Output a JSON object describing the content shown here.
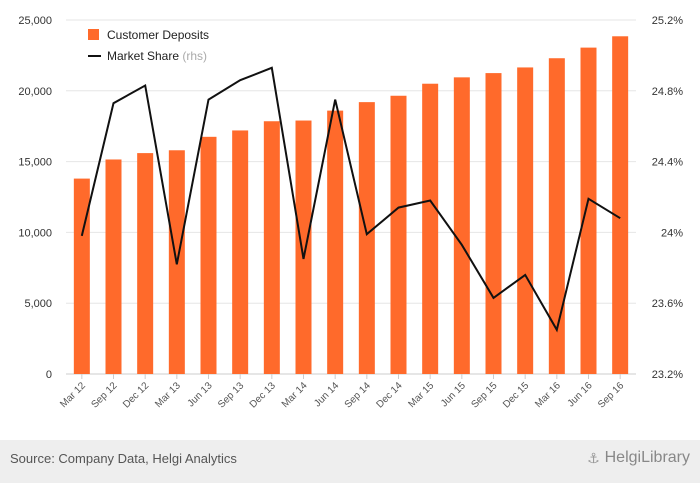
{
  "chart_data": {
    "type": "bar",
    "categories": [
      "Mar 12",
      "Sep 12",
      "Dec 12",
      "Mar 13",
      "Jun 13",
      "Sep 13",
      "Dec 13",
      "Mar 14",
      "Jun 14",
      "Sep 14",
      "Dec 14",
      "Mar 15",
      "Jun 15",
      "Sep 15",
      "Dec 15",
      "Mar 16",
      "Jun 16",
      "Sep 16"
    ],
    "series": [
      {
        "name": "Customer Deposits",
        "type": "bar",
        "axis": "left",
        "color": "#ff6a2b",
        "values": [
          13800,
          15150,
          15600,
          15800,
          16750,
          17200,
          17850,
          17900,
          18600,
          19200,
          19650,
          20500,
          20950,
          21250,
          21650,
          22300,
          23050,
          23850
        ]
      },
      {
        "name": "Market Share",
        "type": "line",
        "axis": "right",
        "color": "#111111",
        "values": [
          23.98,
          24.73,
          24.83,
          23.82,
          24.75,
          24.86,
          24.93,
          23.85,
          24.75,
          23.99,
          24.14,
          24.18,
          23.93,
          23.63,
          23.76,
          23.45,
          24.19,
          24.08
        ]
      }
    ],
    "legend": [
      {
        "label": "Customer Deposits",
        "suffix": ""
      },
      {
        "label": "Market Share",
        "suffix": "(rhs)"
      }
    ],
    "y_left": {
      "min": 0,
      "max": 25000,
      "ticks": [
        "0",
        "5,000",
        "10,000",
        "15,000",
        "20,000",
        "25,000"
      ]
    },
    "y_right": {
      "min": 23.2,
      "max": 25.2,
      "ticks": [
        "23.2%",
        "23.6%",
        "24%",
        "24.4%",
        "24.8%",
        "25.2%"
      ]
    },
    "legend_position": "top-left",
    "grid": "horizontal"
  },
  "footer": {
    "source": "Source: Company Data, Helgi Analytics",
    "brand": "HelgiLibrary",
    "brand_icon": "ship-icon"
  }
}
